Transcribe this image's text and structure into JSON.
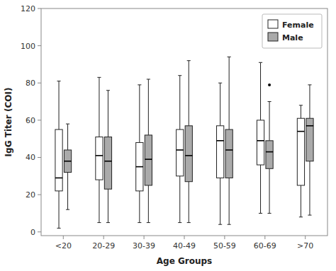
{
  "chart_data": {
    "type": "box",
    "xlabel": "Age Groups",
    "ylabel": "IgG Titer (COI)",
    "categories": [
      "<20",
      "20-29",
      "30-39",
      "40-49",
      "50-59",
      "60-69",
      ">70"
    ],
    "series": [
      {
        "name": "Female",
        "color": "#ffffff",
        "values": [
          {
            "whislo": 2,
            "q1": 22,
            "median": 29,
            "q3": 55,
            "whishi": 81
          },
          {
            "whislo": 5,
            "q1": 28,
            "median": 41,
            "q3": 51,
            "whishi": 83
          },
          {
            "whislo": 5,
            "q1": 22,
            "median": 35,
            "q3": 48,
            "whishi": 79
          },
          {
            "whislo": 5,
            "q1": 30,
            "median": 44,
            "q3": 55,
            "whishi": 84
          },
          {
            "whislo": 4,
            "q1": 29,
            "median": 49,
            "q3": 57,
            "whishi": 80
          },
          {
            "whislo": 10,
            "q1": 36,
            "median": 49,
            "q3": 60,
            "whishi": 91
          },
          {
            "whislo": 8,
            "q1": 25,
            "median": 54,
            "q3": 61,
            "whishi": 68
          }
        ]
      },
      {
        "name": "Male",
        "color": "#aaaaaa",
        "values": [
          {
            "whislo": 12,
            "q1": 32,
            "median": 38,
            "q3": 44,
            "whishi": 58
          },
          {
            "whislo": 5,
            "q1": 23,
            "median": 38,
            "q3": 51,
            "whishi": 76
          },
          {
            "whislo": 5,
            "q1": 25,
            "median": 39,
            "q3": 52,
            "whishi": 82
          },
          {
            "whislo": 5,
            "q1": 27,
            "median": 41,
            "q3": 57,
            "whishi": 92
          },
          {
            "whislo": 4,
            "q1": 29,
            "median": 44,
            "q3": 55,
            "whishi": 94
          },
          {
            "whislo": 10,
            "q1": 34,
            "median": 43,
            "q3": 49,
            "whishi": 70
          },
          {
            "whislo": 9,
            "q1": 38,
            "median": 57,
            "q3": 61,
            "whishi": 79
          }
        ],
        "outliers": [
          [],
          [],
          [],
          [],
          [],
          [
            79
          ],
          []
        ]
      }
    ],
    "ylim": [
      -2,
      120
    ],
    "yticks": [
      0,
      20,
      40,
      60,
      80,
      100,
      120
    ],
    "grid": false,
    "legend": "upper right"
  }
}
